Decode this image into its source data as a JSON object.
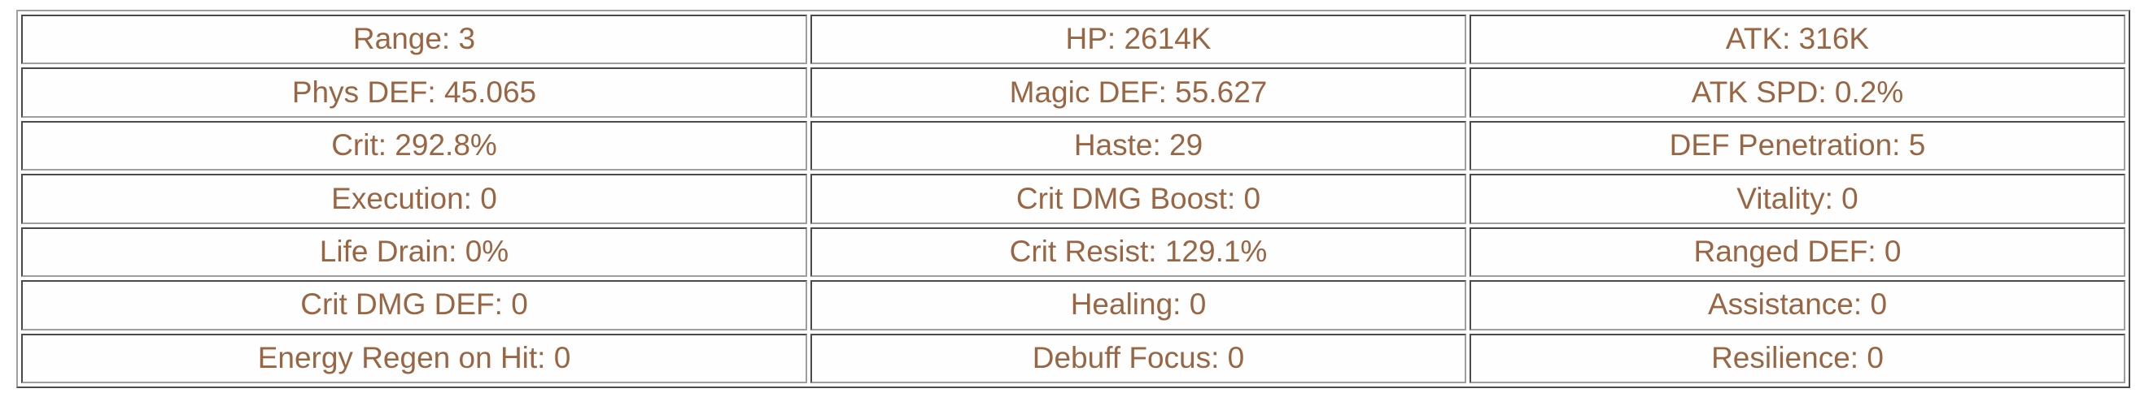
{
  "page": {
    "background_color": "#ffffff"
  },
  "stats_table": {
    "text_color": "#996644",
    "border_color": "#9e9e9e",
    "columns": 3,
    "rows": [
      [
        "Range: 3",
        "HP: 2614K",
        "ATK: 316K"
      ],
      [
        "Phys DEF: 45.065",
        "Magic DEF: 55.627",
        "ATK SPD: 0.2%"
      ],
      [
        "Crit: 292.8%",
        "Haste: 29",
        "DEF Penetration: 5"
      ],
      [
        "Execution: 0",
        "Crit DMG Boost: 0",
        "Vitality: 0"
      ],
      [
        "Life Drain: 0%",
        "Crit Resist: 129.1%",
        "Ranged DEF: 0"
      ],
      [
        "Crit DMG DEF: 0",
        "Healing: 0",
        "Assistance: 0"
      ],
      [
        "Energy Regen on Hit: 0",
        "Debuff Focus: 0",
        "Resilience: 0"
      ]
    ]
  }
}
